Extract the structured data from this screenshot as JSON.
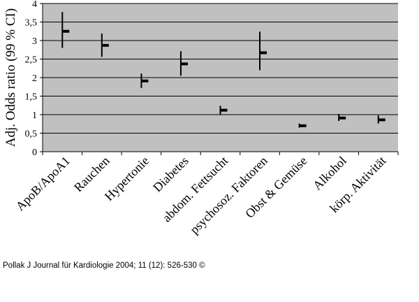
{
  "chart_data": {
    "type": "errorbar",
    "ylabel": "Adj. Odds ratio (99 % CI)",
    "ylim": [
      0,
      4
    ],
    "yticks": [
      "0",
      "0,5",
      "1",
      "1,5",
      "2",
      "2,5",
      "3",
      "3,5",
      "4"
    ],
    "grid": true,
    "plot_background": "#c0c0c0",
    "mark_color": "#000000",
    "categories": [
      "ApoB/ApoA1",
      "Rauchen",
      "Hypertonie",
      "Diabetes",
      "abdom. Fettsucht",
      "psychosoz. Faktoren",
      "Obst & Gemüse",
      "Alkohol",
      "körp. Aktivität"
    ],
    "estimate": [
      3.25,
      2.87,
      1.91,
      2.37,
      1.12,
      2.67,
      0.7,
      0.91,
      0.86
    ],
    "ci_low": [
      2.8,
      2.56,
      1.72,
      2.05,
      1.01,
      2.2,
      0.65,
      0.83,
      0.76
    ],
    "ci_high": [
      3.77,
      3.19,
      2.11,
      2.71,
      1.24,
      3.24,
      0.76,
      1.02,
      0.98
    ]
  },
  "caption": "Pollak J Journal für Kardiologie 2004; 11 (12): 526-530 ©"
}
